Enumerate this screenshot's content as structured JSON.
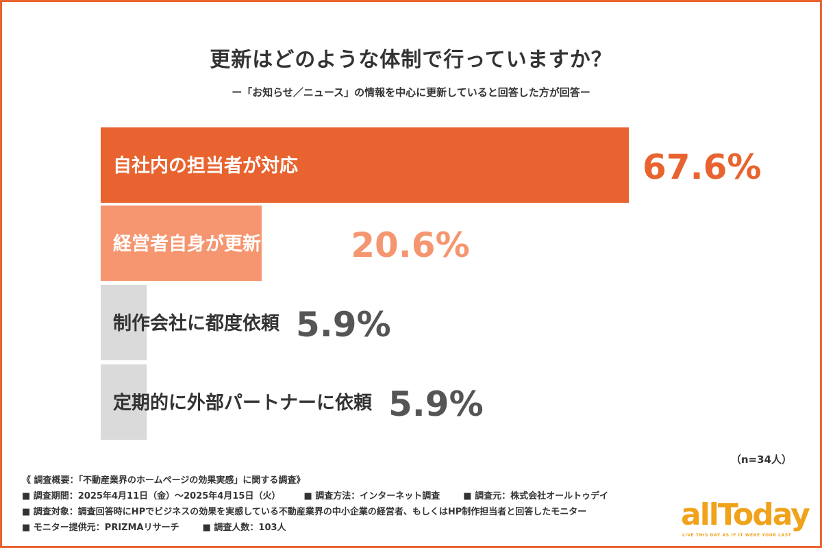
{
  "colors": {
    "frame": "#e8632f",
    "bar_primary": "#e8632f",
    "bar_secondary": "#f59670",
    "bar_tertiary": "#dadada",
    "text_dark": "#333333",
    "value_gray": "#555555",
    "logo": "#f0a21b"
  },
  "chart_data": {
    "type": "bar",
    "orientation": "horizontal",
    "title": "更新はどのような体制で行っていますか？",
    "subtitle": "ー「お知らせ／ニュース」の情報を中心に更新していると回答した方が回答ー",
    "categories": [
      "自社内の担当者が対応",
      "経営者自身が更新している",
      "制作会社に都度依頼",
      "定期的に外部パートナーに依頼"
    ],
    "values": [
      67.6,
      20.6,
      5.9,
      5.9
    ],
    "value_labels": [
      "67.6%",
      "20.6%",
      "5.9%",
      "5.9%"
    ],
    "xlim": [
      0,
      67.6
    ],
    "grid": false,
    "legend": "none"
  },
  "sample_size": "（n=34人）",
  "notes": {
    "header": "《 調査概要：「不動産業界のホームページの効果実感」に関する調査》",
    "period": "■ 調査期間：2025年4月11日（金）〜2025年4月15日（火）",
    "method": "■ 調査方法：インターネット調査",
    "source": "■ 調査元：株式会社オールトゥデイ",
    "target": "■ 調査対象：調査回答時にHPでビジネスの効果を実感している不動産業界の中小企業の経営者、もしくはHP制作担当者と回答したモニター",
    "provider": "■ モニター提供元：PRIZMAリサーチ",
    "count": "■ 調査人数：103人"
  },
  "logo": {
    "text": "allToday",
    "tagline": "LIVE THIS DAY AS IF IT WERE YOUR LAST"
  }
}
